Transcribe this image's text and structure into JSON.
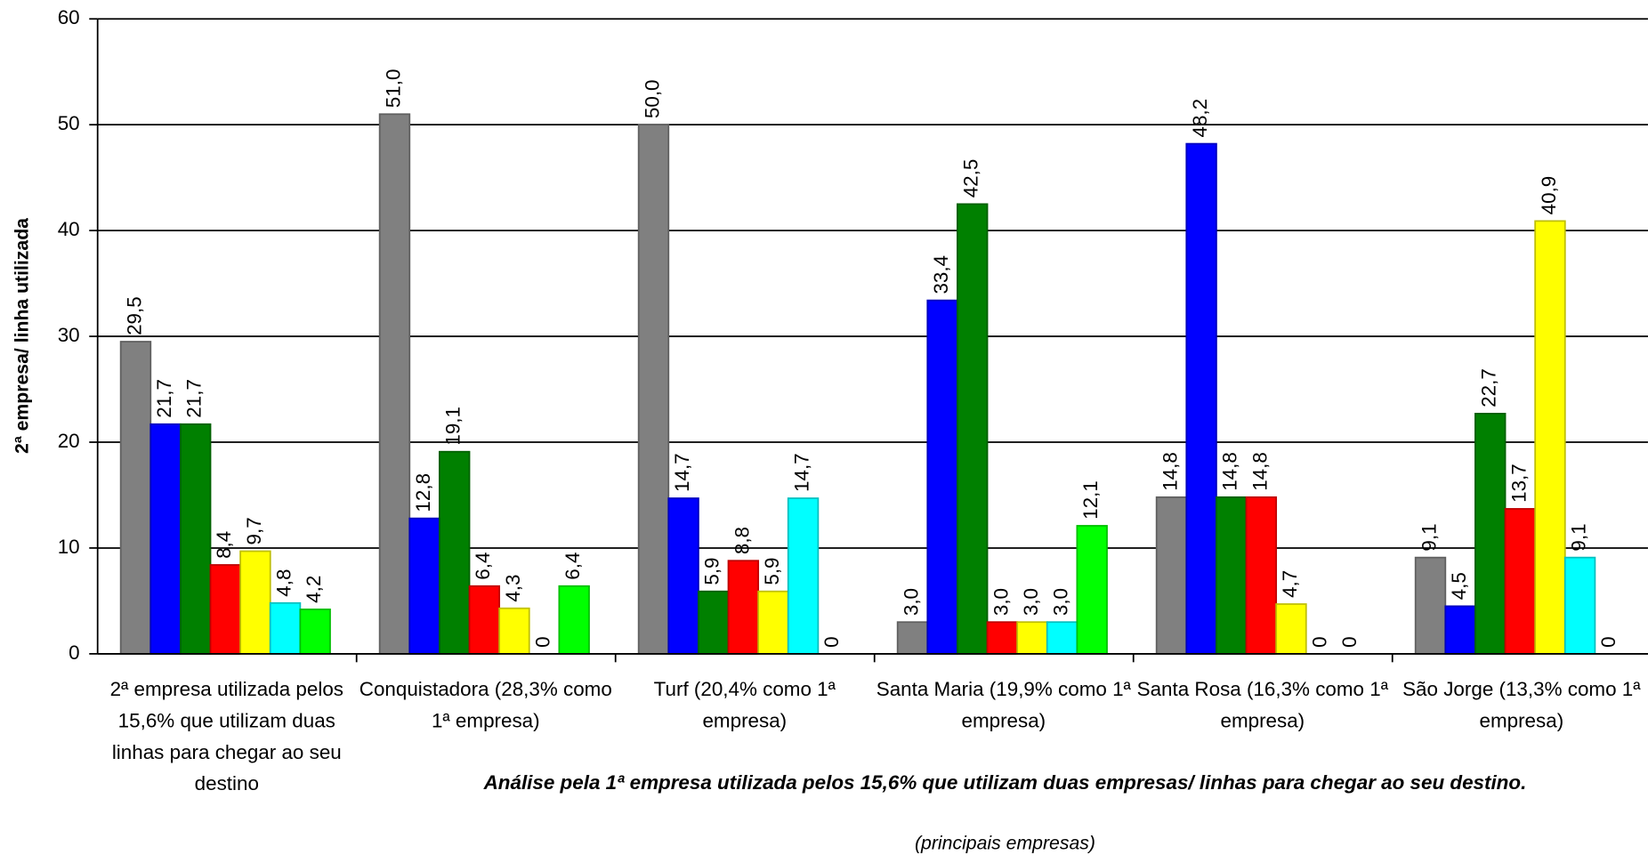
{
  "chart_data": {
    "type": "bar",
    "title": "Análise pela 1ª empresa utilizada pelos 15,6% que utilizam duas empresas/ linhas para chegar ao seu destino.",
    "subtitle": "(principais empresas)",
    "y_label": "2ª empresa/ linha utilizada",
    "categories": [
      "2ª empresa utilizada pelos 15,6% que utilizam duas linhas para chegar ao seu destino",
      "Conquistadora (28,3% como 1ª empresa)",
      "Turf (20,4% como 1ª empresa)",
      "Santa Maria (19,9% como 1ª empresa)",
      "Santa Rosa (16,3% como 1ª empresa)",
      "São Jorge (13,3% como 1ª empresa)"
    ],
    "series": [
      {
        "color": "#808080",
        "values": [
          29.5,
          51.0,
          50.0,
          3.0,
          14.8,
          9.1
        ],
        "value_labels": [
          "29,5",
          "51,0",
          "50,0",
          "3,0",
          "14,8",
          "9,1"
        ]
      },
      {
        "color": "#0000ff",
        "values": [
          21.7,
          12.8,
          14.7,
          33.4,
          48.2,
          4.5
        ],
        "value_labels": [
          "21,7",
          "12,8",
          "14,7",
          "33,4",
          "48,2",
          "4,5"
        ]
      },
      {
        "color": "#008000",
        "values": [
          21.7,
          19.1,
          5.9,
          42.5,
          14.8,
          22.7
        ],
        "value_labels": [
          "21,7",
          "19,1",
          "5,9",
          "42,5",
          "14,8",
          "22,7"
        ]
      },
      {
        "color": "#ff0000",
        "values": [
          8.4,
          6.4,
          8.8,
          3.0,
          14.8,
          13.7
        ],
        "value_labels": [
          "8,4",
          "6,4",
          "8,8",
          "3,0",
          "14,8",
          "13,7"
        ]
      },
      {
        "color": "#ffff00",
        "values": [
          9.7,
          4.3,
          5.9,
          3.0,
          4.7,
          40.9
        ],
        "value_labels": [
          "9,7",
          "4,3",
          "5,9",
          "3,0",
          "4,7",
          "40,9"
        ]
      },
      {
        "color": "#00ffff",
        "values": [
          4.8,
          0,
          14.7,
          3.0,
          0,
          9.1
        ],
        "value_labels": [
          "4,8",
          "0",
          "14,7",
          "3,0",
          "0",
          "9,1"
        ]
      },
      {
        "color": "#00ff00",
        "values": [
          4.2,
          6.4,
          0,
          12.1,
          0,
          0
        ],
        "value_labels": [
          "4,2",
          "6,4",
          "0",
          "12,1",
          "0",
          "0"
        ]
      }
    ],
    "ylim": [
      0,
      60
    ],
    "yticks": [
      0,
      10,
      20,
      30,
      40,
      50,
      60
    ],
    "grid": true
  }
}
